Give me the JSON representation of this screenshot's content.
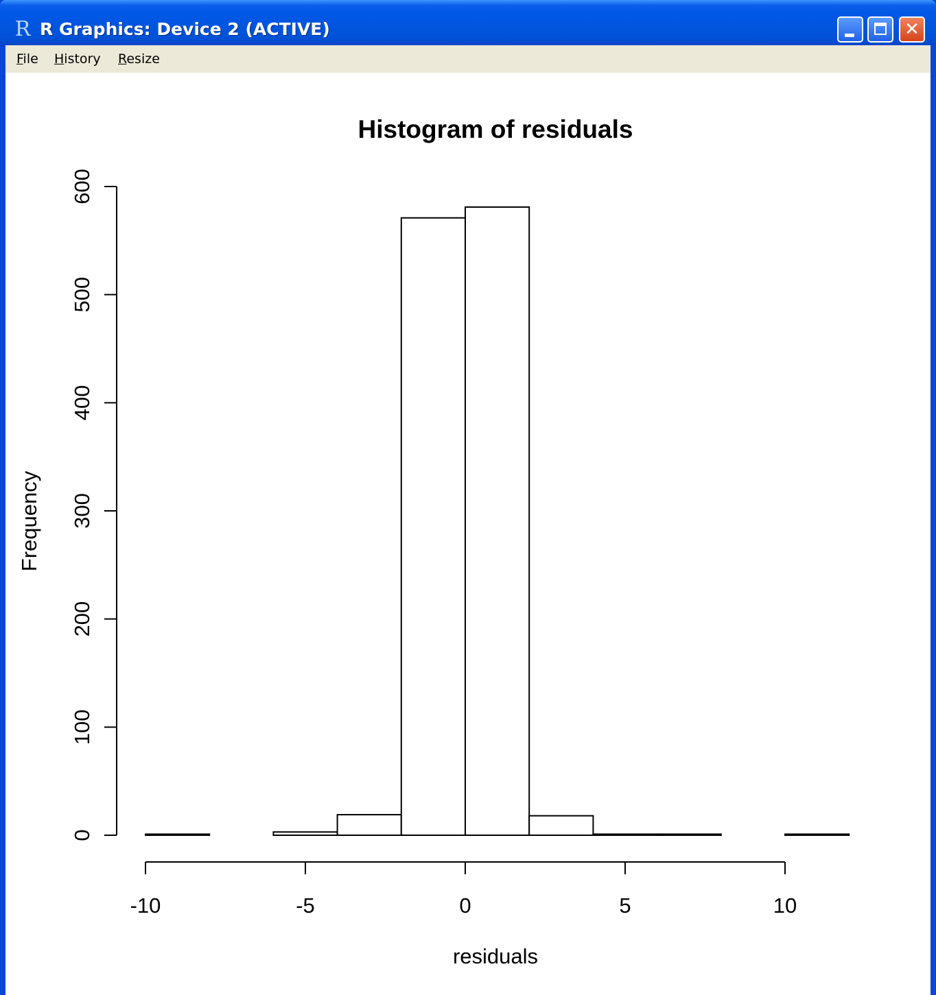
{
  "window": {
    "title": "R Graphics: Device 2 (ACTIVE)",
    "app_icon": "R",
    "controls": {
      "minimize": "minimize-icon",
      "maximize": "maximize-icon",
      "close": "close-icon",
      "close_glyph": "✕"
    }
  },
  "menu": {
    "file": {
      "accel": "F",
      "rest": "ile"
    },
    "history": {
      "accel": "H",
      "rest": "istory"
    },
    "resize": {
      "accel": "R",
      "rest": "esize"
    }
  },
  "chart_data": {
    "type": "bar",
    "title": "Histogram of residuals",
    "xlabel": "residuals",
    "ylabel": "Frequency",
    "bins": [
      {
        "x0": -10,
        "x1": -8,
        "count": 1
      },
      {
        "x0": -8,
        "x1": -6,
        "count": 0
      },
      {
        "x0": -6,
        "x1": -4,
        "count": 3
      },
      {
        "x0": -4,
        "x1": -2,
        "count": 19
      },
      {
        "x0": -2,
        "x1": 0,
        "count": 571
      },
      {
        "x0": 0,
        "x1": 2,
        "count": 581
      },
      {
        "x0": 2,
        "x1": 4,
        "count": 18
      },
      {
        "x0": 4,
        "x1": 6,
        "count": 1
      },
      {
        "x0": 6,
        "x1": 8,
        "count": 1
      },
      {
        "x0": 8,
        "x1": 10,
        "count": 0
      },
      {
        "x0": 10,
        "x1": 12,
        "count": 1
      }
    ],
    "x_ticks": [
      -10,
      -5,
      0,
      5,
      10
    ],
    "x_tick_labels": [
      "-10",
      "-5",
      "0",
      "5",
      "10"
    ],
    "y_ticks": [
      0,
      100,
      200,
      300,
      400,
      500,
      600
    ],
    "y_tick_labels": [
      "0",
      "100",
      "200",
      "300",
      "400",
      "500",
      "600"
    ],
    "xlim": [
      -10,
      12
    ],
    "ylim": [
      0,
      600
    ],
    "grid": false,
    "colors": {
      "bar_fill": "#ffffff",
      "bar_stroke": "#000000"
    }
  }
}
